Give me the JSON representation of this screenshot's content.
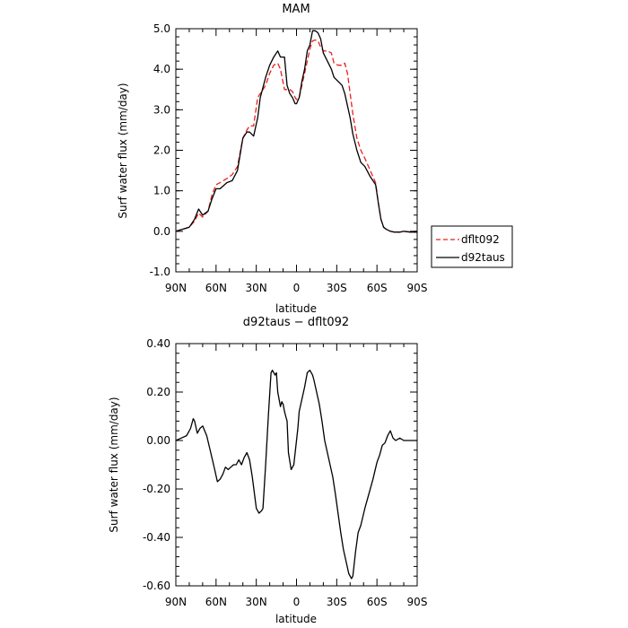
{
  "chart_data": [
    {
      "type": "line",
      "title": "MAM",
      "xlabel": "latitude",
      "ylabel": "Surf water flux (mm/day)",
      "xlim": [
        90,
        -90
      ],
      "ylim": [
        -1.0,
        5.0
      ],
      "x_ticks": [
        90,
        60,
        30,
        0,
        -30,
        -60,
        -90
      ],
      "x_tick_labels": [
        "90N",
        "60N",
        "30N",
        "0",
        "30S",
        "60S",
        "90S"
      ],
      "y_ticks": [
        -1.0,
        0.0,
        1.0,
        2.0,
        3.0,
        4.0,
        5.0
      ],
      "y_tick_labels": [
        "-1.0",
        "0.0",
        "1.0",
        "2.0",
        "3.0",
        "4.0",
        "5.0"
      ],
      "legend_position": "outside-right",
      "series": [
        {
          "name": "dflt092",
          "color": "#e8201c",
          "dash": "dashed",
          "x": [
            90,
            80,
            76,
            73,
            70,
            66,
            63,
            60,
            57,
            52,
            48,
            44,
            40,
            37,
            35,
            32,
            29,
            27,
            23,
            20,
            17,
            14,
            12,
            9,
            7,
            5,
            3,
            1,
            0,
            -2,
            -4,
            -6,
            -8,
            -10,
            -12,
            -14,
            -16,
            -18,
            -20,
            -23,
            -26,
            -28,
            -31,
            -34,
            -36,
            -38,
            -40,
            -42,
            -45,
            -48,
            -51,
            -55,
            -59,
            -61,
            -63,
            -65,
            -67,
            -70,
            -73,
            -77,
            -80,
            -85,
            -90
          ],
          "y": [
            0.0,
            0.1,
            0.25,
            0.45,
            0.35,
            0.5,
            0.9,
            1.15,
            1.2,
            1.3,
            1.4,
            1.6,
            2.3,
            2.5,
            2.6,
            2.6,
            3.3,
            3.4,
            3.6,
            3.9,
            4.1,
            4.15,
            4.0,
            3.5,
            3.5,
            3.5,
            3.45,
            3.3,
            3.25,
            3.3,
            3.6,
            3.9,
            4.2,
            4.5,
            4.7,
            4.72,
            4.7,
            4.55,
            4.45,
            4.45,
            4.4,
            4.15,
            4.1,
            4.1,
            4.15,
            3.9,
            3.4,
            2.9,
            2.3,
            2.0,
            1.8,
            1.5,
            1.2,
            0.7,
            0.3,
            0.1,
            0.05,
            0.0,
            -0.02,
            -0.02,
            0.0,
            -0.02,
            -0.02
          ]
        },
        {
          "name": "d92taus",
          "color": "#000000",
          "dash": "solid",
          "x": [
            90,
            80,
            76,
            73,
            70,
            66,
            63,
            60,
            57,
            52,
            48,
            44,
            40,
            37,
            35,
            32,
            29,
            27,
            23,
            20,
            17,
            14,
            12,
            9,
            7,
            5,
            3,
            1,
            0,
            -2,
            -4,
            -6,
            -8,
            -10,
            -12,
            -14,
            -16,
            -18,
            -20,
            -23,
            -26,
            -28,
            -31,
            -34,
            -36,
            -38,
            -40,
            -42,
            -45,
            -48,
            -51,
            -55,
            -59,
            -61,
            -63,
            -65,
            -67,
            -70,
            -73,
            -77,
            -80,
            -85,
            -90
          ],
          "y": [
            0.0,
            0.1,
            0.3,
            0.55,
            0.4,
            0.5,
            0.8,
            1.05,
            1.05,
            1.2,
            1.25,
            1.5,
            2.3,
            2.45,
            2.45,
            2.35,
            2.8,
            3.3,
            3.8,
            4.1,
            4.3,
            4.45,
            4.3,
            4.3,
            3.6,
            3.4,
            3.3,
            3.15,
            3.15,
            3.3,
            3.7,
            4.0,
            4.45,
            4.6,
            4.95,
            4.95,
            4.9,
            4.75,
            4.4,
            4.2,
            4.0,
            3.8,
            3.7,
            3.6,
            3.4,
            3.1,
            2.8,
            2.4,
            2.0,
            1.7,
            1.6,
            1.35,
            1.15,
            0.7,
            0.3,
            0.1,
            0.05,
            0.0,
            -0.02,
            -0.02,
            0.0,
            -0.02,
            -0.02
          ]
        }
      ]
    },
    {
      "type": "line",
      "title": "d92taus − dflt092",
      "xlabel": "latitude",
      "ylabel": "Surf water flux (mm/day)",
      "xlim": [
        90,
        -90
      ],
      "ylim": [
        -0.6,
        0.4
      ],
      "x_ticks": [
        90,
        60,
        30,
        0,
        -30,
        -60,
        -90
      ],
      "x_tick_labels": [
        "90N",
        "60N",
        "30N",
        "0",
        "30S",
        "60S",
        "90S"
      ],
      "y_ticks": [
        -0.6,
        -0.4,
        -0.2,
        0.0,
        0.2,
        0.4
      ],
      "y_tick_labels": [
        "-0.60",
        "-0.40",
        "-0.20",
        "0.00",
        "0.20",
        "0.40"
      ],
      "series": [
        {
          "color": "#000000",
          "dash": "solid",
          "x": [
            90,
            86,
            82,
            79,
            77,
            76,
            74,
            72,
            70,
            67,
            64,
            61,
            59,
            57,
            55,
            53,
            51,
            49,
            47,
            45,
            43,
            41,
            39,
            37,
            35,
            33,
            30,
            28,
            26,
            25,
            23,
            21,
            19,
            18,
            16,
            15,
            14,
            13,
            12,
            11,
            10,
            9,
            8,
            7,
            6,
            4,
            2,
            1,
            0,
            -1,
            -2,
            -4,
            -6,
            -8,
            -10,
            -12,
            -13,
            -15,
            -17,
            -19,
            -21,
            -23,
            -25,
            -27,
            -29,
            -31,
            -33,
            -35,
            -37,
            -39,
            -41,
            -42,
            -44,
            -46,
            -48,
            -51,
            -54,
            -57,
            -60,
            -62,
            -64,
            -66,
            -68,
            -70,
            -72,
            -74,
            -77,
            -80,
            -85,
            -90
          ],
          "y": [
            0.0,
            0.01,
            0.02,
            0.05,
            0.09,
            0.08,
            0.03,
            0.05,
            0.06,
            0.02,
            -0.05,
            -0.12,
            -0.17,
            -0.16,
            -0.14,
            -0.11,
            -0.12,
            -0.11,
            -0.1,
            -0.1,
            -0.08,
            -0.1,
            -0.07,
            -0.05,
            -0.08,
            -0.15,
            -0.28,
            -0.3,
            -0.29,
            -0.28,
            -0.1,
            0.1,
            0.28,
            0.29,
            0.27,
            0.28,
            0.2,
            0.17,
            0.14,
            0.16,
            0.15,
            0.12,
            0.1,
            0.08,
            -0.05,
            -0.12,
            -0.1,
            -0.05,
            0.0,
            0.05,
            0.12,
            0.17,
            0.22,
            0.28,
            0.29,
            0.27,
            0.25,
            0.2,
            0.15,
            0.08,
            0.0,
            -0.05,
            -0.1,
            -0.15,
            -0.22,
            -0.3,
            -0.38,
            -0.45,
            -0.5,
            -0.55,
            -0.57,
            -0.56,
            -0.46,
            -0.38,
            -0.35,
            -0.28,
            -0.22,
            -0.16,
            -0.09,
            -0.06,
            -0.02,
            -0.01,
            0.02,
            0.04,
            0.01,
            0.0,
            0.01,
            0.0,
            0.0,
            0.0
          ]
        }
      ]
    }
  ]
}
